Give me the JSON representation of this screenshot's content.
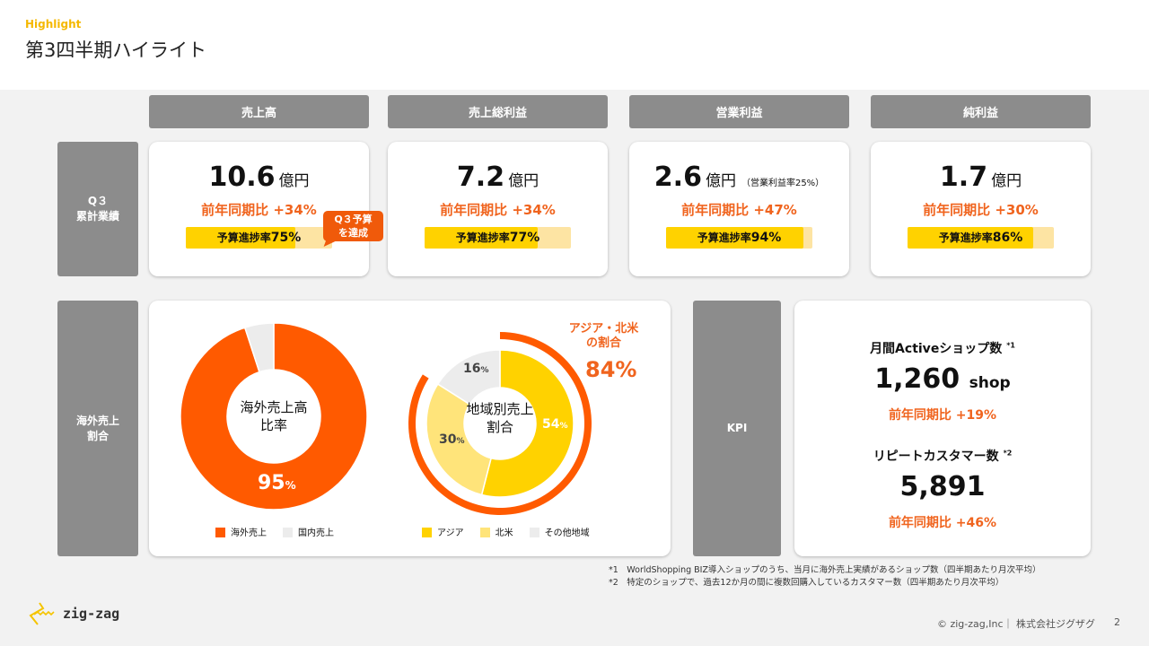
{
  "header": {
    "eyebrow": "Highlight",
    "title": "第3四半期ハイライト"
  },
  "columns": [
    "売上高",
    "売上総利益",
    "営業利益",
    "純利益"
  ],
  "row_labels": {
    "q3": "Q３\n累計業績",
    "overseas": "海外売上\n割合",
    "kpi": "KPI"
  },
  "metrics": [
    {
      "value": "10.6",
      "unit": "億円",
      "note": "",
      "yoy": "前年同期比 +34%",
      "budget_label": "予算進捗率",
      "budget": "75%",
      "budget_pct": 75
    },
    {
      "value": "7.2",
      "unit": "億円",
      "note": "",
      "yoy": "前年同期比 +34%",
      "budget_label": "予算進捗率",
      "budget": "77%",
      "budget_pct": 77
    },
    {
      "value": "2.6",
      "unit": "億円",
      "note": "（営業利益率25%）",
      "yoy": "前年同期比 +47%",
      "budget_label": "予算進捗率",
      "budget": "94%",
      "budget_pct": 94
    },
    {
      "value": "1.7",
      "unit": "億円",
      "note": "",
      "yoy": "前年同期比 +30%",
      "budget_label": "予算進捗率",
      "budget": "86%",
      "budget_pct": 86
    }
  ],
  "callout": "Q３予算\nを達成",
  "chart_data": [
    {
      "type": "pie",
      "title": "海外売上高\n比率",
      "categories": [
        "海外売上",
        "国内売上"
      ],
      "values": [
        95,
        5
      ],
      "colors": [
        "#ff5a00",
        "#ececec"
      ],
      "data_label": "95",
      "data_label_unit": "%"
    },
    {
      "type": "pie",
      "title": "地域別売上\n割合",
      "categories": [
        "アジア",
        "北米",
        "その他地域"
      ],
      "values": [
        54,
        30,
        16
      ],
      "colors": [
        "#ffd200",
        "#ffe47a",
        "#ececec"
      ],
      "labels": [
        "54",
        "30",
        "16"
      ],
      "unit": "%",
      "highlight": {
        "label": "アジア・北米\nの割合",
        "value": "84%",
        "pct": 84,
        "color": "#ff5a00"
      }
    }
  ],
  "kpi": {
    "shops_label": "月間Activeショップ数",
    "shops_mark": "*1",
    "shops_value": "1,260",
    "shops_unit": "shop",
    "shops_yoy": "前年同期比 +19%",
    "repeat_label": "リピートカスタマー数",
    "repeat_mark": "*2",
    "repeat_value": "5,891",
    "repeat_yoy": "前年同期比 +46%"
  },
  "footnotes": [
    "*1　WorldShopping BIZ導入ショップのうち、当月に海外売上実績があるショップ数（四半期あたり月次平均）",
    "*2　特定のショップで、過去12か月の間に複数回購入しているカスタマー数（四半期あたり月次平均）"
  ],
  "footer": {
    "logo": "zig-zag",
    "copyright": "© zig-zag,Inc｜ 株式会社ジグザグ",
    "page": "2"
  }
}
